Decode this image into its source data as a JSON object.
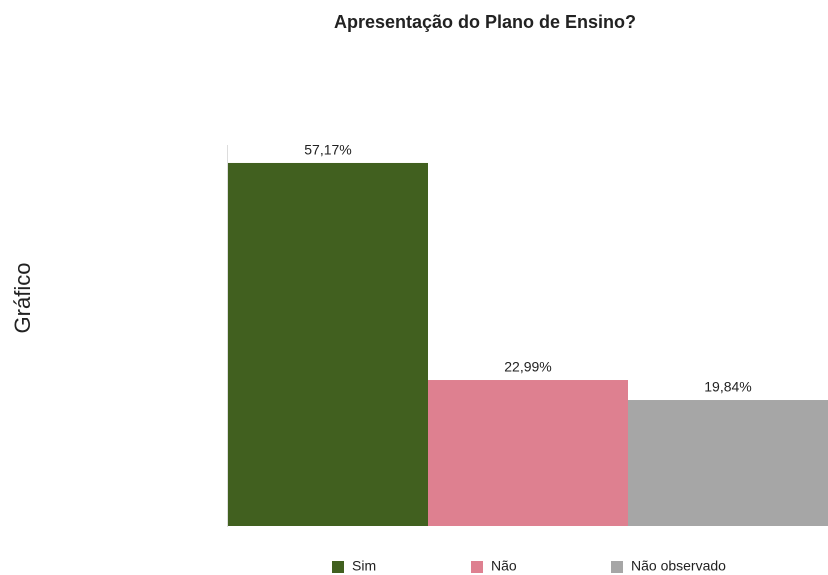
{
  "chart_data": {
    "type": "bar",
    "title": "Apresentação do Plano de Ensino?",
    "y_label": "Gráfico",
    "series": [
      {
        "name": "Sim",
        "color": "#41601f",
        "values": [
          57.17
        ],
        "value_labels": [
          "57,17%"
        ]
      },
      {
        "name": "Não",
        "color": "#de8090",
        "values": [
          22.99
        ],
        "value_labels": [
          "22,99%"
        ]
      },
      {
        "name": "Não observado",
        "color": "#a6a6a6",
        "values": [
          19.84
        ],
        "value_labels": [
          "19,84%"
        ]
      }
    ],
    "ylim": [
      0,
      60
    ]
  }
}
